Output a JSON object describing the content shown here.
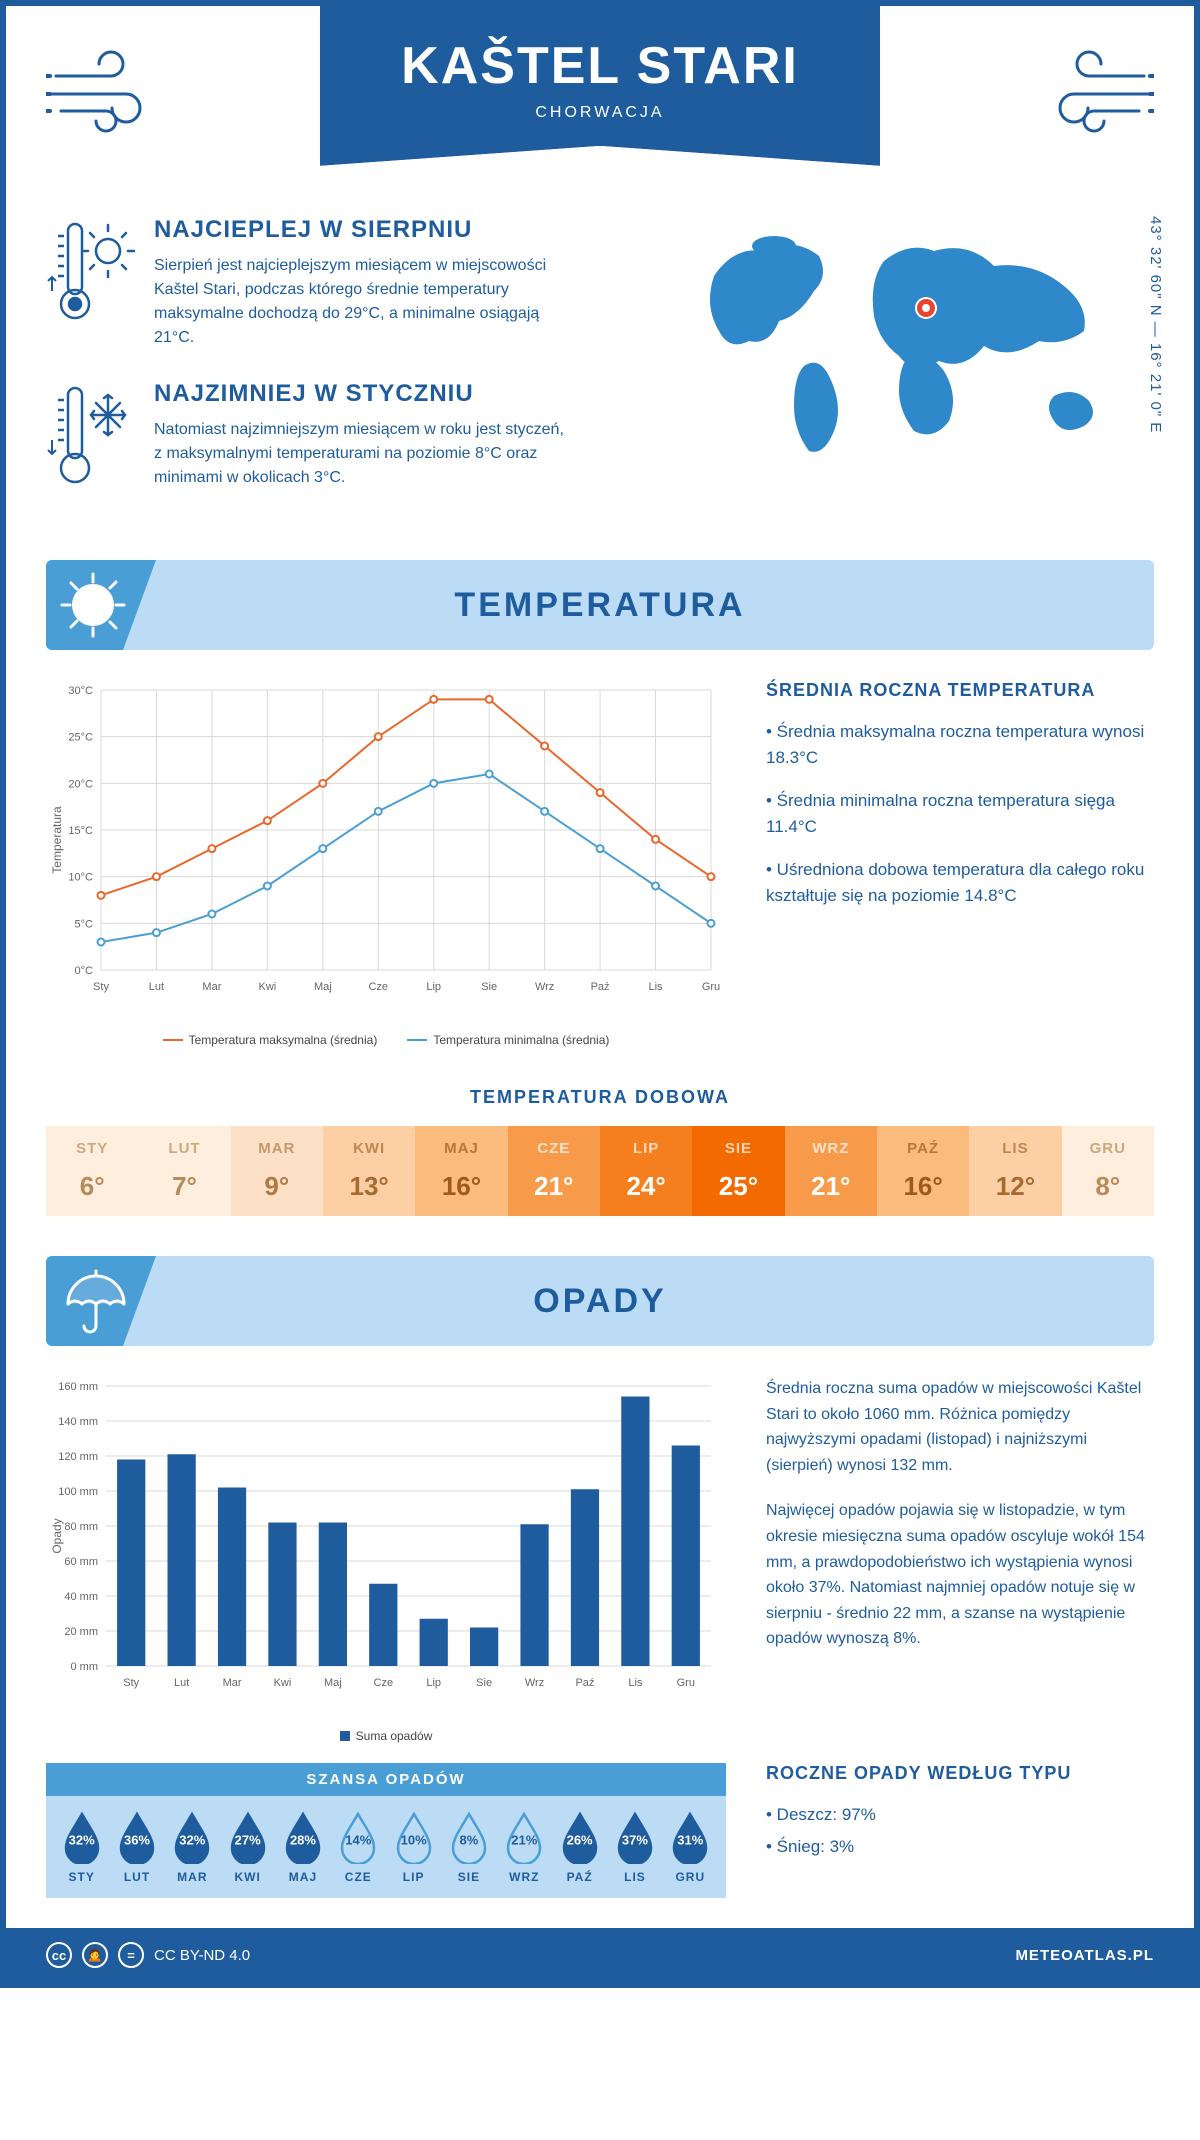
{
  "header": {
    "title": "KAŠTEL STARI",
    "subtitle": "CHORWACJA"
  },
  "coords": "43° 32' 60\" N — 16° 21' 0\" E",
  "warmest": {
    "title": "NAJCIEPLEJ W SIERPNIU",
    "text": "Sierpień jest najcieplejszym miesiącem w miejscowości Kaštel Stari, podczas którego średnie temperatury maksymalne dochodzą do 29°C, a minimalne osiągają 21°C."
  },
  "coldest": {
    "title": "NAJZIMNIEJ W STYCZNIU",
    "text": "Natomiast najzimniejszym miesiącem w roku jest styczeń, z maksymalnymi temperaturami na poziomie 8°C oraz minimami w okolicach 3°C."
  },
  "temp_section_title": "TEMPERATURA",
  "precip_section_title": "OPADY",
  "temp_chart": {
    "months": [
      "Sty",
      "Lut",
      "Mar",
      "Kwi",
      "Maj",
      "Cze",
      "Lip",
      "Sie",
      "Wrz",
      "Paź",
      "Lis",
      "Gru"
    ],
    "max": [
      8,
      10,
      13,
      16,
      20,
      25,
      29,
      29,
      24,
      19,
      14,
      10
    ],
    "min": [
      3,
      4,
      6,
      9,
      13,
      17,
      20,
      21,
      17,
      13,
      9,
      5
    ],
    "max_color": "#e8682c",
    "min_color": "#4a9ed6",
    "ylim": [
      0,
      30
    ],
    "ytick_step": 5,
    "ylabel": "Temperatura",
    "grid_color": "#d8d8d8",
    "legend_max": "Temperatura maksymalna (średnia)",
    "legend_min": "Temperatura minimalna (średnia)"
  },
  "temp_side": {
    "title": "ŚREDNIA ROCZNA TEMPERATURA",
    "bullets": [
      "• Średnia maksymalna roczna temperatura wynosi 18.3°C",
      "• Średnia minimalna roczna temperatura sięga 11.4°C",
      "• Uśredniona dobowa temperatura dla całego roku kształtuje się na poziomie 14.8°C"
    ]
  },
  "daily": {
    "title": "TEMPERATURA DOBOWA",
    "months": [
      "STY",
      "LUT",
      "MAR",
      "KWI",
      "MAJ",
      "CZE",
      "LIP",
      "SIE",
      "WRZ",
      "PAŹ",
      "LIS",
      "GRU"
    ],
    "values": [
      "6°",
      "7°",
      "9°",
      "13°",
      "16°",
      "21°",
      "24°",
      "25°",
      "21°",
      "16°",
      "12°",
      "8°"
    ],
    "bg_colors": [
      "#fdeedd",
      "#fdeedd",
      "#fde1c6",
      "#fccfa5",
      "#fabb7d",
      "#f79b4a",
      "#f57e1f",
      "#f26a00",
      "#f79b4a",
      "#fabb7d",
      "#fccfa5",
      "#fdeedd"
    ],
    "text_colors": [
      "#b88a5a",
      "#b88a5a",
      "#b07a42",
      "#a86a2e",
      "#9e5a1a",
      "#ffffff",
      "#ffffff",
      "#ffffff",
      "#ffffff",
      "#9e5a1a",
      "#a86a2e",
      "#b88a5a"
    ]
  },
  "precip_chart": {
    "months": [
      "Sty",
      "Lut",
      "Mar",
      "Kwi",
      "Maj",
      "Cze",
      "Lip",
      "Sie",
      "Wrz",
      "Paź",
      "Lis",
      "Gru"
    ],
    "values": [
      118,
      121,
      102,
      82,
      82,
      47,
      27,
      22,
      81,
      101,
      154,
      126
    ],
    "bar_color": "#1e5c9e",
    "ylim": [
      0,
      160
    ],
    "ytick_step": 20,
    "ylabel": "Opady",
    "legend": "Suma opadów",
    "grid_color": "#d8d8d8"
  },
  "precip_text1": "Średnia roczna suma opadów w miejscowości Kaštel Stari to około 1060 mm. Różnica pomiędzy najwyższymi opadami (listopad) i najniższymi (sierpień) wynosi 132 mm.",
  "precip_text2": "Najwięcej opadów pojawia się w listopadzie, w tym okresie miesięczna suma opadów oscyluje wokół 154 mm, a prawdopodobieństwo ich wystąpienia wynosi około 37%. Natomiast najmniej opadów notuje się w sierpniu - średnio 22 mm, a szanse na wystąpienie opadów wynoszą 8%.",
  "chance": {
    "title": "SZANSA OPADÓW",
    "months": [
      "STY",
      "LUT",
      "MAR",
      "KWI",
      "MAJ",
      "CZE",
      "LIP",
      "SIE",
      "WRZ",
      "PAŹ",
      "LIS",
      "GRU"
    ],
    "values": [
      "32%",
      "36%",
      "32%",
      "27%",
      "28%",
      "14%",
      "10%",
      "8%",
      "21%",
      "26%",
      "37%",
      "31%"
    ],
    "fill": [
      true,
      true,
      true,
      true,
      true,
      false,
      false,
      false,
      false,
      true,
      true,
      true
    ],
    "fill_color": "#1e5c9e",
    "outline_color": "#4a9ed6"
  },
  "precip_type": {
    "title": "ROCZNE OPADY WEDŁUG TYPU",
    "items": [
      "• Deszcz: 97%",
      "• Śnieg: 3%"
    ]
  },
  "footer": {
    "license": "CC BY-ND 4.0",
    "site": "METEOATLAS.PL"
  },
  "colors": {
    "primary": "#1e5c9e",
    "light": "#bcdcf5",
    "mid": "#4a9ed6"
  }
}
